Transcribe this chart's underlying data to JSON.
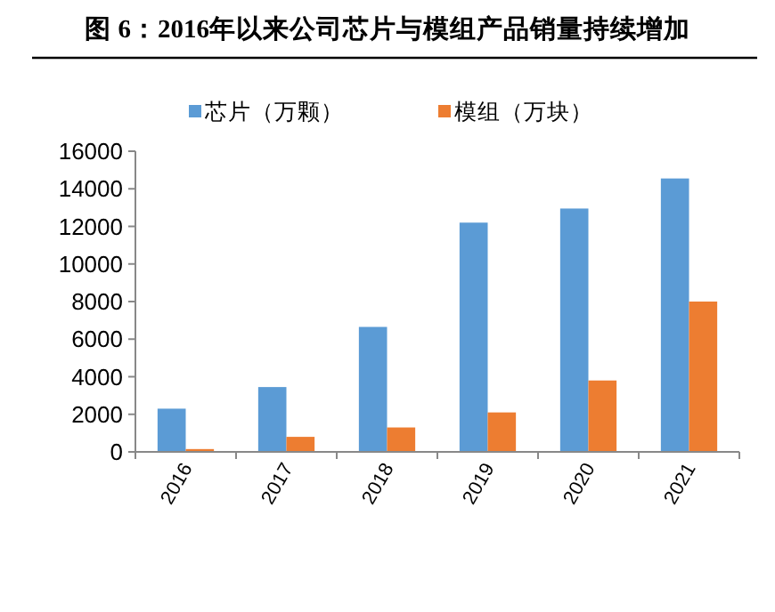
{
  "chart_data": {
    "type": "bar",
    "title": "图 6：2016年以来公司芯片与模组产品销量持续增加",
    "categories": [
      "2016",
      "2017",
      "2018",
      "2019",
      "2020",
      "2021"
    ],
    "series": [
      {
        "name": "芯片（万颗）",
        "color": "#5b9bd5",
        "values": [
          2300,
          3450,
          6650,
          12200,
          12950,
          14550
        ]
      },
      {
        "name": "模组（万块）",
        "color": "#ed7d31",
        "values": [
          150,
          800,
          1300,
          2100,
          3800,
          8000
        ]
      }
    ],
    "ylim": [
      0,
      16000
    ],
    "yticks": [
      0,
      2000,
      4000,
      6000,
      8000,
      10000,
      12000,
      14000,
      16000
    ],
    "grid": false,
    "legend": "top"
  }
}
